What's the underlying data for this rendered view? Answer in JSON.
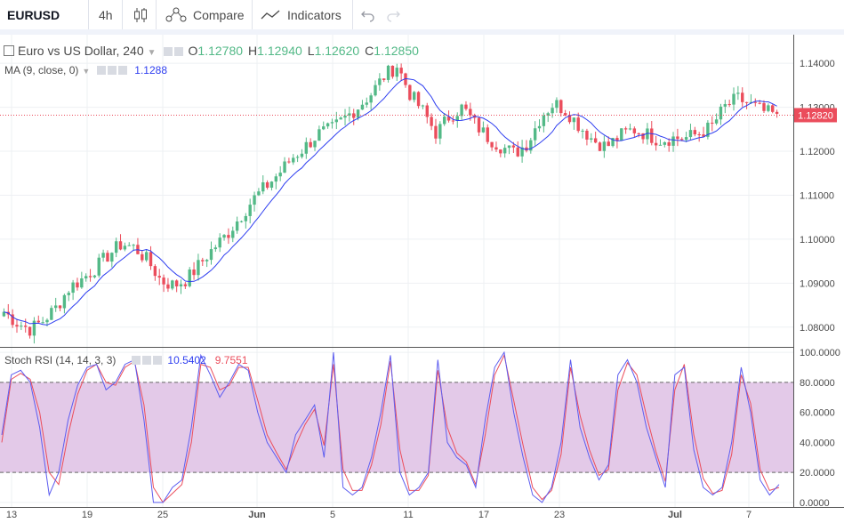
{
  "toolbar": {
    "symbol": "EURUSD",
    "interval": "4h",
    "compare_label": "Compare",
    "indicators_label": "Indicators"
  },
  "legend": {
    "title": "Euro vs US Dollar, 240",
    "o_label": "O",
    "o_value": "1.12780",
    "h_label": "H",
    "h_value": "1.12940",
    "l_label": "L",
    "l_value": "1.12620",
    "c_label": "C",
    "c_value": "1.12850",
    "ma_label": "MA (9, close, 0)",
    "ma_value": "1.1288",
    "stoch_label": "Stoch RSI (14, 14, 3, 3)",
    "stoch_k_value": "10.5402",
    "stoch_d_value": "9.7551"
  },
  "colors": {
    "up": "#53b987",
    "down": "#eb4d5c",
    "ma": "#2e3ef0",
    "stoch_k": "#5d5df0",
    "stoch_d": "#eb4d5c",
    "band": "#e3c9e8",
    "price_label_bg": "#eb4d5c"
  },
  "chart_data": [
    {
      "type": "candlestick",
      "title": "Euro vs US Dollar, 240",
      "ylim": [
        1.0755,
        1.1465
      ],
      "y_ticks": [
        "1.14000",
        "1.13000",
        "1.12000",
        "1.11000",
        "1.10000",
        "1.09000",
        "1.08000"
      ],
      "x_ticks": [
        "13",
        "19",
        "25",
        "Jun",
        "5",
        "11",
        "17",
        "23",
        "Jul",
        "7"
      ],
      "last_price": "1.12820",
      "price_anchors": [
        1.0835,
        1.081,
        1.0795,
        1.0815,
        1.0845,
        1.089,
        1.091,
        1.0935,
        1.0965,
        1.099,
        1.098,
        1.095,
        1.0905,
        1.0895,
        1.091,
        1.0945,
        1.098,
        1.101,
        1.105,
        1.109,
        1.112,
        1.115,
        1.1185,
        1.121,
        1.124,
        1.125,
        1.1275,
        1.13,
        1.133,
        1.137,
        1.1395,
        1.133,
        1.129,
        1.124,
        1.128,
        1.13,
        1.126,
        1.123,
        1.121,
        1.1195,
        1.122,
        1.128,
        1.131,
        1.129,
        1.1255,
        1.1225,
        1.121,
        1.1235,
        1.125,
        1.124,
        1.1225,
        1.123,
        1.123,
        1.124,
        1.1255,
        1.13,
        1.132,
        1.1305,
        1.129,
        1.1282
      ],
      "ma_last": 1.1288
    },
    {
      "type": "line",
      "title": "Stoch RSI (14, 14, 3, 3)",
      "ylim": [
        -3,
        103
      ],
      "y_ticks": [
        "100.0000",
        "80.0000",
        "60.0000",
        "40.0000",
        "20.0000",
        "0.0000"
      ],
      "band": [
        20,
        80
      ],
      "series": [
        {
          "name": "K",
          "values": [
            45,
            85,
            88,
            80,
            50,
            5,
            20,
            55,
            78,
            90,
            92,
            75,
            80,
            92,
            95,
            55,
            0,
            0,
            10,
            15,
            50,
            98,
            85,
            70,
            80,
            92,
            88,
            60,
            40,
            30,
            20,
            45,
            55,
            65,
            30,
            100,
            10,
            5,
            10,
            30,
            60,
            98,
            20,
            5,
            10,
            20,
            95,
            40,
            30,
            25,
            10,
            55,
            90,
            100,
            60,
            30,
            5,
            0,
            10,
            40,
            95,
            50,
            30,
            15,
            25,
            85,
            95,
            80,
            50,
            30,
            10,
            85,
            90,
            35,
            10,
            5,
            10,
            40,
            90,
            60,
            15,
            5,
            12
          ],
          "last": 10.5402
        },
        {
          "name": "D",
          "values": [
            40,
            82,
            86,
            82,
            60,
            20,
            12,
            45,
            72,
            88,
            92,
            80,
            78,
            90,
            94,
            65,
            10,
            0,
            6,
            12,
            40,
            92,
            90,
            75,
            78,
            90,
            90,
            68,
            45,
            33,
            22,
            38,
            52,
            62,
            38,
            92,
            22,
            8,
            8,
            25,
            52,
            94,
            35,
            8,
            8,
            18,
            88,
            50,
            33,
            27,
            12,
            45,
            85,
            98,
            68,
            38,
            10,
            2,
            8,
            32,
            90,
            58,
            35,
            18,
            22,
            75,
            93,
            85,
            58,
            34,
            14,
            75,
            92,
            45,
            16,
            6,
            8,
            32,
            85,
            66,
            22,
            8,
            10
          ],
          "last": 9.7551
        }
      ]
    }
  ]
}
